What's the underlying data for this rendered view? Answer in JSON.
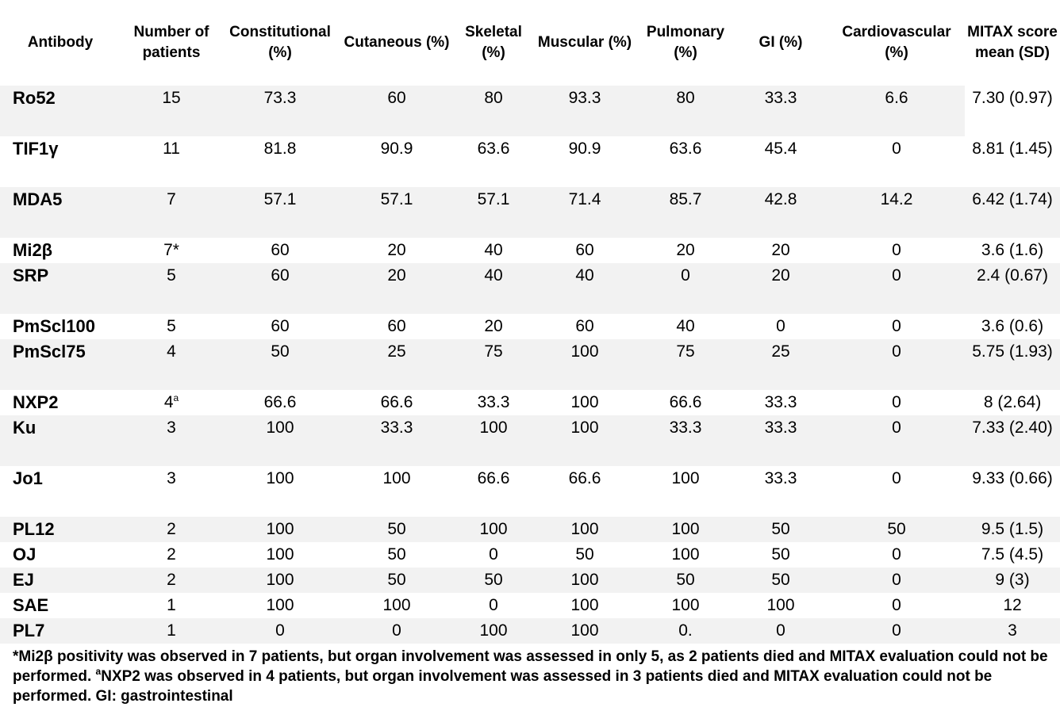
{
  "table": {
    "headers": [
      "Antibody",
      "Number of patients",
      "Constitutional (%)",
      "Cutaneous (%)",
      "Skeletal (%)",
      "Muscular (%)",
      "Pulmonary (%)",
      "GI (%)",
      "Cardiovascular (%)",
      "MITAX score mean (SD)"
    ],
    "rows": [
      {
        "antibody": "Ro52",
        "n": "15",
        "constitutional": "73.3",
        "cutaneous": "60",
        "skeletal": "80",
        "muscular": "93.3",
        "pulmonary": "80",
        "gi": "33.3",
        "cardiovascular": "6.6",
        "mitax": "7.30 (0.97)"
      },
      {
        "antibody": "TIF1γ",
        "n": "11",
        "constitutional": "81.8",
        "cutaneous": "90.9",
        "skeletal": "63.6",
        "muscular": "90.9",
        "pulmonary": "63.6",
        "gi": "45.4",
        "cardiovascular": "0",
        "mitax": "8.81 (1.45)"
      },
      {
        "antibody": "MDA5",
        "n": "7",
        "constitutional": "57.1",
        "cutaneous": "57.1",
        "skeletal": "57.1",
        "muscular": "71.4",
        "pulmonary": "85.7",
        "gi": "42.8",
        "cardiovascular": "14.2",
        "mitax": "6.42 (1.74)"
      },
      {
        "antibody": "Mi2β",
        "n": "7*",
        "constitutional": "60",
        "cutaneous": "20",
        "skeletal": "40",
        "muscular": "60",
        "pulmonary": "20",
        "gi": "20",
        "cardiovascular": "0",
        "mitax": "3.6 (1.6)"
      },
      {
        "antibody": "SRP",
        "n": "5",
        "constitutional": "60",
        "cutaneous": "20",
        "skeletal": "40",
        "muscular": "40",
        "pulmonary": "0",
        "gi": "20",
        "cardiovascular": "0",
        "mitax": "2.4 (0.67)"
      },
      {
        "antibody": "PmScl100",
        "n": "5",
        "constitutional": "60",
        "cutaneous": "60",
        "skeletal": "20",
        "muscular": "60",
        "pulmonary": "40",
        "gi": "0",
        "cardiovascular": "0",
        "mitax": "3.6 (0.6)"
      },
      {
        "antibody": "PmScl75",
        "n": "4",
        "constitutional": "50",
        "cutaneous": "25",
        "skeletal": "75",
        "muscular": "100",
        "pulmonary": "75",
        "gi": "25",
        "cardiovascular": "0",
        "mitax": "5.75 (1.93)"
      },
      {
        "antibody": "NXP2",
        "n": "4",
        "n_sup": "a",
        "constitutional": "66.6",
        "cutaneous": "66.6",
        "skeletal": "33.3",
        "muscular": "100",
        "pulmonary": "66.6",
        "gi": "33.3",
        "cardiovascular": "0",
        "mitax": "8 (2.64)"
      },
      {
        "antibody": "Ku",
        "n": "3",
        "constitutional": "100",
        "cutaneous": "33.3",
        "skeletal": "100",
        "muscular": "100",
        "pulmonary": "33.3",
        "gi": "33.3",
        "cardiovascular": "0",
        "mitax": "7.33 (2.40)"
      },
      {
        "antibody": "Jo1",
        "n": "3",
        "constitutional": "100",
        "cutaneous": "100",
        "skeletal": "66.6",
        "muscular": "66.6",
        "pulmonary": "100",
        "gi": "33.3",
        "cardiovascular": "0",
        "mitax": "9.33 (0.66)"
      },
      {
        "antibody": "PL12",
        "n": "2",
        "constitutional": "100",
        "cutaneous": "50",
        "skeletal": "100",
        "muscular": "100",
        "pulmonary": "100",
        "gi": "50",
        "cardiovascular": "50",
        "mitax": "9.5 (1.5)"
      },
      {
        "antibody": "OJ",
        "n": "2",
        "constitutional": "100",
        "cutaneous": "50",
        "skeletal": "0",
        "muscular": "50",
        "pulmonary": "100",
        "gi": "50",
        "cardiovascular": "0",
        "mitax": "7.5 (4.5)"
      },
      {
        "antibody": "EJ",
        "n": "2",
        "constitutional": "100",
        "cutaneous": "50",
        "skeletal": "50",
        "muscular": "100",
        "pulmonary": "50",
        "gi": "50",
        "cardiovascular": "0",
        "mitax": "9 (3)"
      },
      {
        "antibody": "SAE",
        "n": "1",
        "constitutional": "100",
        "cutaneous": "100",
        "skeletal": "0",
        "muscular": "100",
        "pulmonary": "100",
        "gi": "100",
        "cardiovascular": "0",
        "mitax": "12"
      },
      {
        "antibody": "PL7",
        "n": "1",
        "constitutional": "0",
        "cutaneous": "0",
        "skeletal": "100",
        "muscular": "100",
        "pulmonary": "0.",
        "gi": "0",
        "cardiovascular": "0",
        "mitax": "3"
      }
    ]
  },
  "footnote": {
    "part1": "*Mi2β positivity was observed in 7 patients, but organ involvement was assessed in only 5, as 2 patients died and MITAX evaluation could not be performed. ",
    "sup": "a",
    "part2": "NXP2 was observed in 4 patients, but organ involvement was assessed in 3 patients died and MITAX evaluation could not be performed. GI: gastrointestinal"
  }
}
